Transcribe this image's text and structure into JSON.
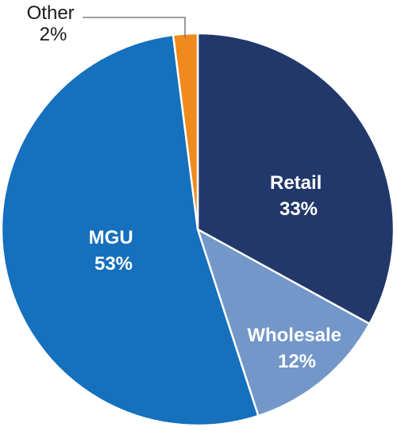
{
  "chart_data": {
    "type": "pie",
    "title": "",
    "slices": [
      {
        "name": "Retail",
        "percent": 33,
        "value_label": "33%",
        "color": "#22386b"
      },
      {
        "name": "Wholesale",
        "percent": 12,
        "value_label": "12%",
        "color": "#7297c8"
      },
      {
        "name": "MGU",
        "percent": 53,
        "value_label": "53%",
        "color": "#1570bd"
      },
      {
        "name": "Other",
        "percent": 2,
        "value_label": "2%",
        "color": "#f08a1c"
      }
    ],
    "start_angle": "12 o'clock",
    "direction": "clockwise",
    "legend": "none (labels on slices)"
  }
}
